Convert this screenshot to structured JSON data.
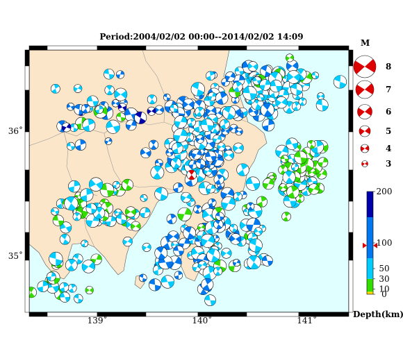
{
  "title": "Period:2004/02/02 00:00--2014/02/02 14:09",
  "map": {
    "lon_range": [
      138.35,
      141.4
    ],
    "lat_range": [
      34.55,
      36.65
    ],
    "lon_ticks": [
      {
        "value": 139,
        "label": "139˚"
      },
      {
        "value": 140,
        "label": "140˚"
      },
      {
        "value": 141,
        "label": "141˚"
      }
    ],
    "lat_ticks": [
      {
        "value": 36,
        "label": "36˚"
      },
      {
        "value": 35,
        "label": "35˚"
      }
    ],
    "colors": {
      "land": "#fce6c9",
      "sea": "#e0ffff",
      "border": "#000000"
    }
  },
  "magnitude_legend": {
    "title": "M",
    "items": [
      {
        "magnitude": "8",
        "size": 8
      },
      {
        "magnitude": "7",
        "size": 7
      },
      {
        "magnitude": "6",
        "size": 6
      },
      {
        "magnitude": "5",
        "size": 5
      },
      {
        "magnitude": "4",
        "size": 4
      },
      {
        "magnitude": "3",
        "size": 3
      }
    ]
  },
  "depth_scale": {
    "title": "Depth(km)",
    "ticks": [
      "200",
      "100",
      "50",
      "30",
      "10",
      "0"
    ],
    "tick_values": [
      200,
      100,
      50,
      30,
      10,
      0
    ],
    "marker_depth": 95,
    "bands": [
      {
        "from": 0,
        "to": 5,
        "color": "#ffd700"
      },
      {
        "from": 5,
        "to": 30,
        "color": "#33dd00"
      },
      {
        "from": 30,
        "to": 70,
        "color": "#00ccff"
      },
      {
        "from": 70,
        "to": 150,
        "color": "#0077ee"
      },
      {
        "from": 150,
        "to": 200,
        "color": "#0000aa"
      }
    ]
  },
  "highlight_event": {
    "lon": 139.9,
    "lat": 35.65,
    "magnitude": 5.4,
    "color": "#dd0000"
  }
}
